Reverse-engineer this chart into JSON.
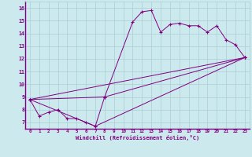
{
  "bg_color": "#cce9ed",
  "line_color": "#800080",
  "grid_color": "#aacdd4",
  "text_color": "#800080",
  "xlim": [
    -0.5,
    23.5
  ],
  "ylim": [
    6.5,
    16.5
  ],
  "xticks": [
    0,
    1,
    2,
    3,
    4,
    5,
    6,
    7,
    8,
    9,
    10,
    11,
    12,
    13,
    14,
    15,
    16,
    17,
    18,
    19,
    20,
    21,
    22,
    23
  ],
  "yticks": [
    7,
    8,
    9,
    10,
    11,
    12,
    13,
    14,
    15,
    16
  ],
  "xlabel": "Windchill (Refroidissement éolien,°C)",
  "line1_x": [
    0,
    1,
    2,
    3,
    4,
    5,
    6,
    7,
    8,
    11,
    12,
    13,
    14,
    15,
    16,
    17,
    18,
    19,
    20,
    21,
    22,
    23
  ],
  "line1_y": [
    8.8,
    7.5,
    7.8,
    8.0,
    7.3,
    7.3,
    7.0,
    6.7,
    9.0,
    14.9,
    15.7,
    15.8,
    14.1,
    14.7,
    14.8,
    14.6,
    14.6,
    14.1,
    14.6,
    13.5,
    13.1,
    12.1
  ],
  "line2_x": [
    0,
    7,
    23
  ],
  "line2_y": [
    8.8,
    6.7,
    12.1
  ],
  "line3_x": [
    0,
    23
  ],
  "line3_y": [
    8.8,
    12.1
  ],
  "line4_x": [
    0,
    8,
    23
  ],
  "line4_y": [
    8.8,
    9.0,
    12.1
  ]
}
